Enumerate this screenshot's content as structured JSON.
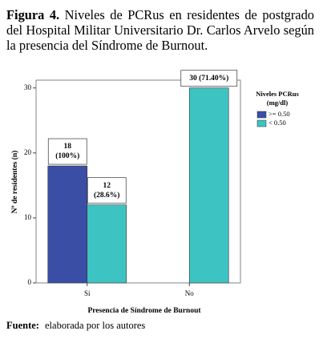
{
  "chart_data": {
    "type": "bar",
    "caption_label": "Figura 4.",
    "title": "Niveles de PCRus en residentes de postgrado del Hospital Militar Universitario Dr. Carlos Arvelo según la presencia del Síndrome de Burnout.",
    "categories": [
      "Sí",
      "No"
    ],
    "series": [
      {
        "name": ">= 0.50",
        "color": "#3b4ea6",
        "values": [
          18,
          null
        ],
        "value_labels": [
          [
            "18",
            "(100%)"
          ],
          null
        ]
      },
      {
        "name": "< 0.50",
        "color": "#3ec3c3",
        "values": [
          12,
          30
        ],
        "value_labels": [
          [
            "12",
            "(28.6%)"
          ],
          [
            "30 (71.40%)"
          ]
        ]
      }
    ],
    "legend_title": [
      "Niveles PCRus",
      "(mg/dl)"
    ],
    "x_label": "Presencia de Síndrome de Burnout",
    "y_label": "Nº de residentes (n)",
    "ylim": [
      0,
      31.2
    ],
    "yticks": [
      0,
      10,
      20,
      30
    ],
    "source_label": "Fuente:",
    "source": "elaborada por los autores"
  }
}
